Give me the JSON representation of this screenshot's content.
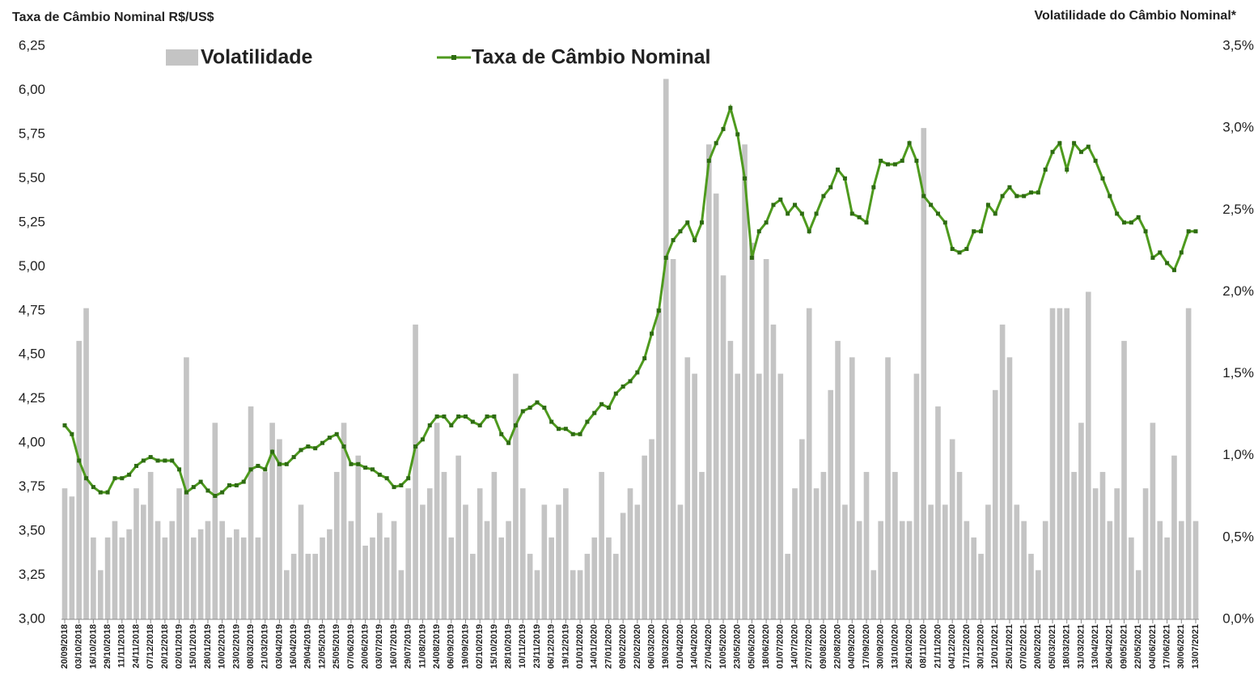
{
  "chart_data": {
    "type": "bar-line",
    "title": "Taxa de Câmbio Nominal R$/US$",
    "y2_title": "Volatilidade do Câmbio Nominal*",
    "categories": [
      "20/09/2018",
      null,
      "03/10/2018",
      null,
      "16/10/2018",
      null,
      "29/10/2018",
      null,
      "11/11/2018",
      null,
      "24/11/2018",
      null,
      "07/12/2018",
      null,
      "20/12/2018",
      null,
      "02/01/2019",
      null,
      "15/01/2019",
      null,
      "28/01/2019",
      null,
      "10/02/2019",
      null,
      "23/02/2019",
      null,
      "08/03/2019",
      null,
      "21/03/2019",
      null,
      "03/04/2019",
      null,
      "16/04/2019",
      null,
      "29/04/2019",
      null,
      "12/05/2019",
      null,
      "25/05/2019",
      null,
      "07/06/2019",
      null,
      "20/06/2019",
      null,
      "03/07/2019",
      null,
      "16/07/2019",
      null,
      "29/07/2019",
      null,
      "11/08/2019",
      null,
      "24/08/2019",
      null,
      "06/09/2019",
      null,
      "19/09/2019",
      null,
      "02/10/2019",
      null,
      "15/10/2019",
      null,
      "28/10/2019",
      null,
      "10/11/2019",
      null,
      "23/11/2019",
      null,
      "06/12/2019",
      null,
      "19/12/2019",
      null,
      "01/01/2020",
      null,
      "14/01/2020",
      null,
      "27/01/2020",
      null,
      "09/02/2020",
      null,
      "22/02/2020",
      null,
      "06/03/2020",
      null,
      "19/03/2020",
      null,
      "01/04/2020",
      null,
      "14/04/2020",
      null,
      "27/04/2020",
      null,
      "10/05/2020",
      null,
      "23/05/2020",
      null,
      "05/06/2020",
      null,
      "18/06/2020",
      null,
      "01/07/2020",
      null,
      "14/07/2020",
      null,
      "27/07/2020",
      null,
      "09/08/2020",
      null,
      "22/08/2020",
      null,
      "04/09/2020",
      null,
      "17/09/2020",
      null,
      "30/09/2020",
      null,
      "13/10/2020",
      null,
      "26/10/2020",
      null,
      "08/11/2020",
      null,
      "21/11/2020",
      null,
      "04/12/2020",
      null,
      "17/12/2020",
      null,
      "30/12/2020",
      null,
      "12/01/2021",
      null,
      "25/01/2021",
      null,
      "07/02/2021",
      null,
      "20/02/2021",
      null,
      "05/03/2021",
      null,
      "18/03/2021",
      null,
      "31/03/2021",
      null,
      "13/04/2021",
      null,
      "26/04/2021",
      null,
      "09/05/2021",
      null,
      "22/05/2021",
      null,
      "04/06/2021",
      null,
      "17/06/2021",
      null,
      "30/06/2021",
      null,
      "13/07/2021"
    ],
    "series": [
      {
        "name": "Volatilidade",
        "type": "bar",
        "axis": "y2",
        "color": "#c4c4c4",
        "values": [
          0.8,
          0.75,
          1.7,
          1.9,
          0.5,
          0.3,
          0.5,
          0.6,
          0.5,
          0.55,
          0.8,
          0.7,
          0.9,
          0.6,
          0.5,
          0.6,
          0.8,
          1.6,
          0.5,
          0.55,
          0.6,
          1.2,
          0.6,
          0.5,
          0.55,
          0.5,
          1.3,
          0.5,
          0.9,
          1.2,
          1.1,
          0.3,
          0.4,
          0.7,
          0.4,
          0.4,
          0.5,
          0.55,
          0.9,
          1.2,
          0.6,
          1.0,
          0.45,
          0.5,
          0.65,
          0.5,
          0.6,
          0.3,
          0.8,
          1.8,
          0.7,
          0.8,
          1.2,
          0.9,
          0.5,
          1.0,
          0.7,
          0.4,
          0.8,
          0.6,
          0.9,
          0.5,
          0.6,
          1.5,
          0.8,
          0.4,
          0.3,
          0.7,
          0.5,
          0.7,
          0.8,
          0.3,
          0.3,
          0.4,
          0.5,
          0.9,
          0.5,
          0.4,
          0.65,
          0.8,
          0.7,
          1.0,
          1.1,
          1.9,
          3.3,
          2.2,
          0.7,
          1.6,
          1.5,
          0.9,
          2.9,
          2.6,
          2.1,
          1.7,
          1.5,
          2.9,
          2.3,
          1.5,
          2.2,
          1.8,
          1.5,
          0.4,
          0.8,
          1.1,
          1.9,
          0.8,
          0.9,
          1.4,
          1.7,
          0.7,
          1.6,
          0.6,
          0.9,
          0.3,
          0.6,
          1.6,
          0.9,
          0.6,
          0.6,
          1.5,
          3.0,
          0.7,
          1.3,
          0.7,
          1.1,
          0.9,
          0.6,
          0.5,
          0.4,
          0.7,
          1.4,
          1.8,
          1.6,
          0.7,
          0.6,
          0.4,
          0.3,
          0.6,
          1.9,
          1.9,
          1.9,
          0.9,
          1.2,
          2.0,
          0.8,
          0.9,
          0.6,
          0.8,
          1.7,
          0.5,
          0.3,
          0.8,
          1.2,
          0.6,
          0.5,
          1.0,
          0.6,
          1.9,
          0.6
        ]
      },
      {
        "name": "Taxa de Câmbio Nominal",
        "type": "line",
        "axis": "y",
        "color": "#4e9a1e",
        "marker_color": "#2e6b12",
        "values": [
          4.1,
          4.05,
          3.9,
          3.8,
          3.75,
          3.72,
          3.72,
          3.8,
          3.8,
          3.82,
          3.87,
          3.9,
          3.92,
          3.9,
          3.9,
          3.9,
          3.85,
          3.72,
          3.75,
          3.78,
          3.73,
          3.7,
          3.72,
          3.76,
          3.76,
          3.78,
          3.85,
          3.87,
          3.85,
          3.95,
          3.88,
          3.88,
          3.92,
          3.96,
          3.98,
          3.97,
          4.0,
          4.03,
          4.05,
          3.98,
          3.88,
          3.88,
          3.86,
          3.85,
          3.82,
          3.8,
          3.75,
          3.76,
          3.8,
          3.98,
          4.02,
          4.1,
          4.15,
          4.15,
          4.1,
          4.15,
          4.15,
          4.12,
          4.1,
          4.15,
          4.15,
          4.05,
          4.0,
          4.1,
          4.18,
          4.2,
          4.23,
          4.2,
          4.12,
          4.08,
          4.08,
          4.05,
          4.05,
          4.12,
          4.17,
          4.22,
          4.2,
          4.28,
          4.32,
          4.35,
          4.4,
          4.48,
          4.62,
          4.75,
          5.05,
          5.15,
          5.2,
          5.25,
          5.15,
          5.25,
          5.6,
          5.7,
          5.78,
          5.9,
          5.75,
          5.5,
          5.05,
          5.2,
          5.25,
          5.35,
          5.38,
          5.3,
          5.35,
          5.3,
          5.2,
          5.3,
          5.4,
          5.45,
          5.55,
          5.5,
          5.3,
          5.28,
          5.25,
          5.45,
          5.6,
          5.58,
          5.58,
          5.6,
          5.7,
          5.6,
          5.4,
          5.35,
          5.3,
          5.25,
          5.1,
          5.08,
          5.1,
          5.2,
          5.2,
          5.35,
          5.3,
          5.4,
          5.45,
          5.4,
          5.4,
          5.42,
          5.42,
          5.55,
          5.65,
          5.7,
          5.55,
          5.7,
          5.65,
          5.68,
          5.6,
          5.5,
          5.4,
          5.3,
          5.25,
          5.25,
          5.28,
          5.2,
          5.05,
          5.08,
          5.02,
          4.98,
          5.08,
          5.2,
          5.2
        ]
      }
    ],
    "ylim": [
      3.0,
      6.25
    ],
    "yticks": [
      {
        "value": 3.0,
        "label": "3,00"
      },
      {
        "value": 3.25,
        "label": "3,25"
      },
      {
        "value": 3.5,
        "label": "3,50"
      },
      {
        "value": 3.75,
        "label": "3,75"
      },
      {
        "value": 4.0,
        "label": "4,00"
      },
      {
        "value": 4.25,
        "label": "4,25"
      },
      {
        "value": 4.5,
        "label": "4,50"
      },
      {
        "value": 4.75,
        "label": "4,75"
      },
      {
        "value": 5.0,
        "label": "5,00"
      },
      {
        "value": 5.25,
        "label": "5,25"
      },
      {
        "value": 5.5,
        "label": "5,50"
      },
      {
        "value": 5.75,
        "label": "5,75"
      },
      {
        "value": 6.0,
        "label": "6,00"
      },
      {
        "value": 6.25,
        "label": "6,25"
      }
    ],
    "y2lim": [
      0,
      3.5
    ],
    "y2ticks": [
      {
        "value": 0,
        "label": "0,0%"
      },
      {
        "value": 0.5,
        "label": "0,5%"
      },
      {
        "value": 1.0,
        "label": "1,0%"
      },
      {
        "value": 1.5,
        "label": "1,5%"
      },
      {
        "value": 2.0,
        "label": "2,0%"
      },
      {
        "value": 2.5,
        "label": "2,5%"
      },
      {
        "value": 3.0,
        "label": "3,0%"
      },
      {
        "value": 3.5,
        "label": "3,5%"
      }
    ],
    "grid": false,
    "legend": "top"
  }
}
